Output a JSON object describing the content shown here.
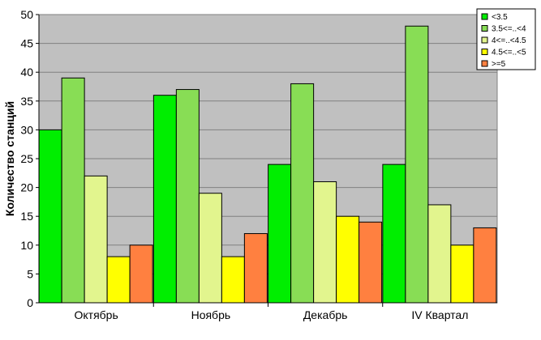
{
  "chart_data": {
    "type": "bar",
    "categories": [
      "Октябрь",
      "Ноябрь",
      "Декабрь",
      "IV Квартал"
    ],
    "series": [
      {
        "name": "<3.5",
        "color": "#00ee00",
        "values": [
          30,
          36,
          24,
          24
        ]
      },
      {
        "name": "3.5<=..<4",
        "color": "#88dd55",
        "values": [
          39,
          37,
          38,
          48
        ]
      },
      {
        "name": "4<=..<4.5",
        "color": "#e2f58e",
        "values": [
          22,
          19,
          21,
          17
        ]
      },
      {
        "name": "4.5<=..<5",
        "color": "#ffff00",
        "values": [
          8,
          8,
          15,
          10
        ]
      },
      {
        "name": ">=5",
        "color": "#ff8040",
        "values": [
          10,
          12,
          14,
          13
        ]
      }
    ],
    "title": "",
    "xlabel": "",
    "ylabel": "Количество станций",
    "ylim": [
      0,
      50
    ],
    "yticks": [
      0,
      5,
      10,
      15,
      20,
      25,
      30,
      35,
      40,
      45,
      50
    ],
    "grid": true,
    "legend": "top-right",
    "plot_background": "#c0c0c0"
  }
}
